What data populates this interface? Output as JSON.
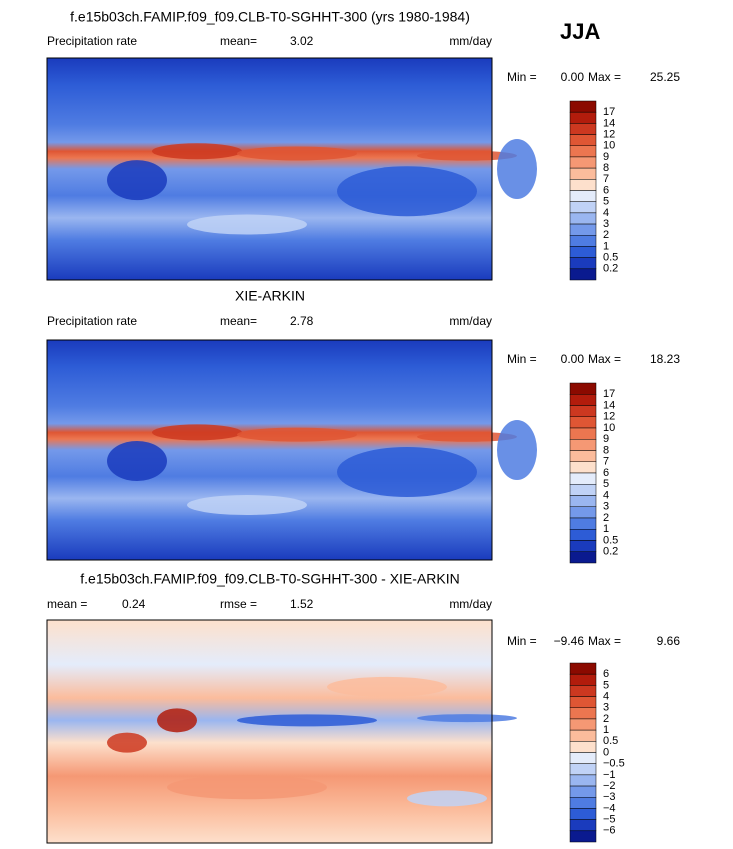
{
  "header": {
    "season": "JJA"
  },
  "panels": [
    {
      "title": "f.e15b03ch.FAMIP.f09_f09.CLB-T0-SGHHT-300 (yrs 1980-1984)",
      "left_label": "Precipitation rate",
      "stats": [
        {
          "label": "mean=",
          "value": "3.02"
        }
      ],
      "units": "mm/day",
      "min_label": "Min =",
      "min_value": "0.00",
      "max_label": "Max =",
      "max_value": "25.25",
      "colorbar": {
        "labels": [
          "17",
          "14",
          "12",
          "10",
          "9",
          "8",
          "7",
          "6",
          "5",
          "4",
          "3",
          "2",
          "1",
          "0.5",
          "0.2"
        ],
        "colors": [
          "#8b0a00",
          "#b21c0c",
          "#cc3820",
          "#df5634",
          "#ec7650",
          "#f59874",
          "#fbbc9c",
          "#fde0cc",
          "#e4ecfb",
          "#c0d2f6",
          "#9ab6f0",
          "#7499ea",
          "#4f7ce2",
          "#2d5cd6",
          "#1a3bbd",
          "#0a1a8f"
        ]
      }
    },
    {
      "title": "XIE-ARKIN",
      "left_label": "Precipitation rate",
      "stats": [
        {
          "label": "mean=",
          "value": "2.78"
        }
      ],
      "units": "mm/day",
      "min_label": "Min =",
      "min_value": "0.00",
      "max_label": "Max =",
      "max_value": "18.23",
      "colorbar": {
        "labels": [
          "17",
          "14",
          "12",
          "10",
          "9",
          "8",
          "7",
          "6",
          "5",
          "4",
          "3",
          "2",
          "1",
          "0.5",
          "0.2"
        ],
        "colors": [
          "#8b0a00",
          "#b21c0c",
          "#cc3820",
          "#df5634",
          "#ec7650",
          "#f59874",
          "#fbbc9c",
          "#fde0cc",
          "#e4ecfb",
          "#c0d2f6",
          "#9ab6f0",
          "#7499ea",
          "#4f7ce2",
          "#2d5cd6",
          "#1a3bbd",
          "#0a1a8f"
        ]
      }
    },
    {
      "title": "f.e15b03ch.FAMIP.f09_f09.CLB-T0-SGHHT-300 - XIE-ARKIN",
      "stats": [
        {
          "label": "mean =",
          "value": "0.24"
        },
        {
          "label": "rmse =",
          "value": "1.52"
        }
      ],
      "units": "mm/day",
      "min_label": "Min =",
      "min_value": "−9.46",
      "max_label": "Max =",
      "max_value": "9.66",
      "colorbar": {
        "labels": [
          "6",
          "5",
          "4",
          "3",
          "2",
          "1",
          "0.5",
          "0",
          "−0.5",
          "−1",
          "−2",
          "−3",
          "−4",
          "−5",
          "−6"
        ],
        "colors": [
          "#8b0a00",
          "#b21c0c",
          "#cc3820",
          "#df5634",
          "#ec7650",
          "#f59874",
          "#fbbc9c",
          "#fde0cc",
          "#e4ecfb",
          "#c0d2f6",
          "#9ab6f0",
          "#7499ea",
          "#4f7ce2",
          "#2d5cd6",
          "#1a3bbd",
          "#0a1a8f"
        ]
      }
    }
  ]
}
